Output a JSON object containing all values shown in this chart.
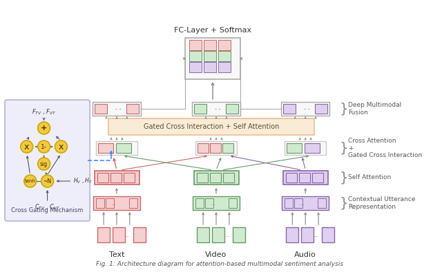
{
  "title": "FC-Layer + Softmax",
  "caption": "Fig. 1: Architecture diagram for attention-based multimodal sentiment analysis",
  "bg_color": "#ffffff",
  "text_color": "#333333",
  "red_color": "#e8a0a0",
  "red_border": "#cc6666",
  "red_fill": "#f5d0d0",
  "green_color": "#a0c8a0",
  "green_border": "#669966",
  "green_fill": "#d0ead0",
  "purple_color": "#b8a0c8",
  "purple_border": "#8866aa",
  "purple_fill": "#e0d0f0",
  "orange_fill": "#faebd7",
  "orange_border": "#e8c090",
  "gate_fill": "#e8e8f8",
  "gate_border": "#aaaacc",
  "modalities": [
    "Text",
    "Video",
    "Audio"
  ],
  "fc_label": "FC-Layer + Softmax",
  "gci_label": "Gated Cross Interaction + Self Attention",
  "cross_gate_label": "Cross Gating Mechanism"
}
